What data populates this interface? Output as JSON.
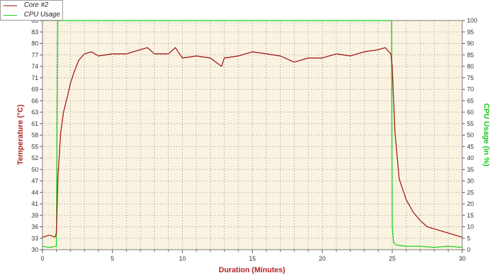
{
  "chart_data": {
    "type": "line",
    "title": "",
    "xlabel": "Duration (Minutes)",
    "ylabel_left": "Temperature (°C)",
    "ylabel_right": "CPU Usage (in %)",
    "xlim": [
      0,
      30
    ],
    "ylim_left": [
      30,
      85
    ],
    "ylim_right": [
      0,
      100
    ],
    "xticks": [
      "0",
      "5",
      "10",
      "15",
      "20",
      "25",
      "30"
    ],
    "yticks_left": [
      "30",
      "33",
      "36",
      "39",
      "41",
      "44",
      "47",
      "50",
      "52",
      "55",
      "58",
      "61",
      "63",
      "66",
      "69",
      "71",
      "74",
      "77",
      "80",
      "83",
      "85"
    ],
    "yticks_right": [
      "0",
      "5",
      "10",
      "15",
      "20",
      "25",
      "30",
      "35",
      "40",
      "45",
      "50",
      "55",
      "60",
      "65",
      "70",
      "75",
      "80",
      "85",
      "90",
      "95",
      "100"
    ],
    "grid": true,
    "legend_position": "top-left",
    "background_color": "#fbf3e1",
    "series": [
      {
        "name": "Core #2",
        "axis": "left",
        "color": "#a01818",
        "x": [
          0,
          0.5,
          0.9,
          1.0,
          1.1,
          1.3,
          1.5,
          1.8,
          2.0,
          2.3,
          2.6,
          3.0,
          3.5,
          4,
          5,
          6,
          7,
          7.5,
          8,
          9,
          9.5,
          10,
          11,
          12,
          12.8,
          13,
          14,
          15,
          16,
          17,
          18,
          19,
          20,
          21,
          22,
          23,
          24,
          24.5,
          24.9,
          25.0,
          25.2,
          25.5,
          26,
          26.5,
          27,
          27.5,
          28,
          28.5,
          29,
          29.5,
          30
        ],
        "y": [
          33,
          33.5,
          33,
          34,
          47,
          58,
          63,
          67,
          70,
          73,
          75.5,
          77,
          77.5,
          76.5,
          77,
          77,
          78,
          78.5,
          77,
          77,
          78.5,
          76,
          76.5,
          76,
          74,
          76,
          76.5,
          77.5,
          77,
          76.5,
          75,
          76,
          76,
          77,
          76.5,
          77.5,
          78,
          78.5,
          77,
          74,
          58,
          47,
          42,
          39,
          37,
          35.5,
          35,
          34.5,
          34,
          33.5,
          33
        ]
      },
      {
        "name": "CPU Usage",
        "axis": "right",
        "color": "#19d219",
        "x": [
          0,
          0.5,
          1.0,
          1.05,
          1.1,
          3,
          10,
          20,
          24.9,
          24.95,
          25.0,
          25.1,
          25.3,
          26,
          27,
          28,
          29,
          30
        ],
        "y": [
          1.5,
          1,
          1.5,
          60,
          100,
          100,
          100,
          100,
          100,
          100,
          10,
          3,
          2,
          1.5,
          1.5,
          1,
          1.5,
          1
        ]
      }
    ]
  }
}
